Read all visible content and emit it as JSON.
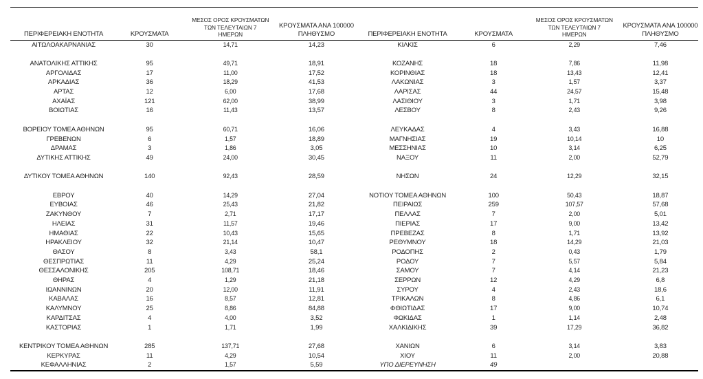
{
  "page": {
    "background": "#ffffff",
    "text_color": "#1f1f1f",
    "border_color": "#000000"
  },
  "table": {
    "headers": {
      "region": "ΠΕΡΙΦΕΡΕΙΑΚΗ ΕΝΟΤΗΤΑ",
      "cases": "ΚΡΟΥΣΜΑΤΑ",
      "avg7_line1": "ΜΕΣΟΣ ΟΡΟΣ ΚΡΟΥΣΜΑΤΩΝ",
      "avg7_line2": "ΤΩΝ ΤΕΛΕΥΤΑΙΩΝ 7",
      "avg7_line3": "ΗΜΕΡΩΝ",
      "per100k_line1": "ΚΡΟΥΣΜΑΤΑ ΑΝΑ 100000",
      "per100k_line2": "ΠΛΗΘΥΣΜΟ"
    },
    "left_rows": [
      {
        "region": "ΑΙΤΩΛΟΑΚΑΡΝΑΝΙΑΣ",
        "cases": "30",
        "avg7": "14,71",
        "per100k": "14,23"
      },
      {
        "region": "",
        "cases": "",
        "avg7": "",
        "per100k": ""
      },
      {
        "region": "ΑΝΑΤΟΛΙΚΗΣ ΑΤΤΙΚΗΣ",
        "cases": "95",
        "avg7": "49,71",
        "per100k": "18,91"
      },
      {
        "region": "ΑΡΓΟΛΙΔΑΣ",
        "cases": "17",
        "avg7": "11,00",
        "per100k": "17,52"
      },
      {
        "region": "ΑΡΚΑΔΙΑΣ",
        "cases": "36",
        "avg7": "18,29",
        "per100k": "41,53"
      },
      {
        "region": "ΑΡΤΑΣ",
        "cases": "12",
        "avg7": "6,00",
        "per100k": "17,68"
      },
      {
        "region": "ΑΧΑΪΑΣ",
        "cases": "121",
        "avg7": "62,00",
        "per100k": "38,99"
      },
      {
        "region": "ΒΟΙΩΤΙΑΣ",
        "cases": "16",
        "avg7": "11,43",
        "per100k": "13,57"
      },
      {
        "region": "",
        "cases": "",
        "avg7": "",
        "per100k": ""
      },
      {
        "region": "ΒΟΡΕΙΟΥ ΤΟΜΕΑ ΑΘΗΝΩΝ",
        "cases": "95",
        "avg7": "60,71",
        "per100k": "16,06"
      },
      {
        "region": "ΓΡΕΒΕΝΩΝ",
        "cases": "6",
        "avg7": "1,57",
        "per100k": "18,89"
      },
      {
        "region": "ΔΡΑΜΑΣ",
        "cases": "3",
        "avg7": "1,86",
        "per100k": "3,05"
      },
      {
        "region": "ΔΥΤΙΚΗΣ ΑΤΤΙΚΗΣ",
        "cases": "49",
        "avg7": "24,00",
        "per100k": "30,45"
      },
      {
        "region": "",
        "cases": "",
        "avg7": "",
        "per100k": ""
      },
      {
        "region": "ΔΥΤΙΚΟΥ ΤΟΜΕΑ ΑΘΗΝΩΝ",
        "cases": "140",
        "avg7": "92,43",
        "per100k": "28,59"
      },
      {
        "region": "",
        "cases": "",
        "avg7": "",
        "per100k": ""
      },
      {
        "region": "ΕΒΡΟΥ",
        "cases": "40",
        "avg7": "14,29",
        "per100k": "27,04"
      },
      {
        "region": "ΕΥΒΟΙΑΣ",
        "cases": "46",
        "avg7": "25,43",
        "per100k": "21,82"
      },
      {
        "region": "ΖΑΚΥΝΘΟΥ",
        "cases": "7",
        "avg7": "2,71",
        "per100k": "17,17"
      },
      {
        "region": "ΗΛΕΙΑΣ",
        "cases": "31",
        "avg7": "11,57",
        "per100k": "19,46"
      },
      {
        "region": "ΗΜΑΘΙΑΣ",
        "cases": "22",
        "avg7": "10,43",
        "per100k": "15,65"
      },
      {
        "region": "ΗΡΑΚΛΕΙΟΥ",
        "cases": "32",
        "avg7": "21,14",
        "per100k": "10,47"
      },
      {
        "region": "ΘΑΣΟΥ",
        "cases": "8",
        "avg7": "3,43",
        "per100k": "58,1"
      },
      {
        "region": "ΘΕΣΠΡΩΤΙΑΣ",
        "cases": "11",
        "avg7": "4,29",
        "per100k": "25,24"
      },
      {
        "region": "ΘΕΣΣΑΛΟΝΙΚΗΣ",
        "cases": "205",
        "avg7": "108,71",
        "per100k": "18,46"
      },
      {
        "region": "ΘΗΡΑΣ",
        "cases": "4",
        "avg7": "1,29",
        "per100k": "21,18"
      },
      {
        "region": "ΙΩΑΝΝΙΝΩΝ",
        "cases": "20",
        "avg7": "12,00",
        "per100k": "11,91"
      },
      {
        "region": "ΚΑΒΑΛΑΣ",
        "cases": "16",
        "avg7": "8,57",
        "per100k": "12,81"
      },
      {
        "region": "ΚΑΛΥΜΝΟΥ",
        "cases": "25",
        "avg7": "8,86",
        "per100k": "84,88"
      },
      {
        "region": "ΚΑΡΔΙΤΣΑΣ",
        "cases": "4",
        "avg7": "4,00",
        "per100k": "3,52"
      },
      {
        "region": "ΚΑΣΤΟΡΙΑΣ",
        "cases": "1",
        "avg7": "1,71",
        "per100k": "1,99"
      },
      {
        "region": "",
        "cases": "",
        "avg7": "",
        "per100k": ""
      },
      {
        "region": "ΚΕΝΤΡΙΚΟΥ ΤΟΜΕΑ ΑΘΗΝΩΝ",
        "cases": "285",
        "avg7": "137,71",
        "per100k": "27,68"
      },
      {
        "region": "ΚΕΡΚΥΡΑΣ",
        "cases": "11",
        "avg7": "4,29",
        "per100k": "10,54"
      },
      {
        "region": "ΚΕΦΑΛΛΗΝΙΑΣ",
        "cases": "2",
        "avg7": "1,57",
        "per100k": "5,59"
      }
    ],
    "right_rows": [
      {
        "region": "ΚΙΛΚΙΣ",
        "cases": "6",
        "avg7": "2,29",
        "per100k": "7,46"
      },
      {
        "region": "",
        "cases": "",
        "avg7": "",
        "per100k": ""
      },
      {
        "region": "ΚΟΖΑΝΗΣ",
        "cases": "18",
        "avg7": "7,86",
        "per100k": "11,98"
      },
      {
        "region": "ΚΟΡΙΝΘΙΑΣ",
        "cases": "18",
        "avg7": "13,43",
        "per100k": "12,41"
      },
      {
        "region": "ΛΑΚΩΝΙΑΣ",
        "cases": "3",
        "avg7": "1,57",
        "per100k": "3,37"
      },
      {
        "region": "ΛΑΡΙΣΑΣ",
        "cases": "44",
        "avg7": "24,57",
        "per100k": "15,48"
      },
      {
        "region": "ΛΑΣΙΘΙΟΥ",
        "cases": "3",
        "avg7": "1,71",
        "per100k": "3,98"
      },
      {
        "region": "ΛΕΣΒΟΥ",
        "cases": "8",
        "avg7": "2,43",
        "per100k": "9,26"
      },
      {
        "region": "",
        "cases": "",
        "avg7": "",
        "per100k": ""
      },
      {
        "region": "ΛΕΥΚΑΔΑΣ",
        "cases": "4",
        "avg7": "3,43",
        "per100k": "16,88"
      },
      {
        "region": "ΜΑΓΝΗΣΙΑΣ",
        "cases": "19",
        "avg7": "10,14",
        "per100k": "10"
      },
      {
        "region": "ΜΕΣΣΗΝΙΑΣ",
        "cases": "10",
        "avg7": "3,14",
        "per100k": "6,25"
      },
      {
        "region": "ΝΑΞΟΥ",
        "cases": "11",
        "avg7": "2,00",
        "per100k": "52,79"
      },
      {
        "region": "",
        "cases": "",
        "avg7": "",
        "per100k": ""
      },
      {
        "region": "ΝΗΣΩΝ",
        "cases": "24",
        "avg7": "12,29",
        "per100k": "32,15"
      },
      {
        "region": "",
        "cases": "",
        "avg7": "",
        "per100k": ""
      },
      {
        "region": "ΝΟΤΙΟΥ ΤΟΜΕΑ ΑΘΗΝΩΝ",
        "cases": "100",
        "avg7": "50,43",
        "per100k": "18,87"
      },
      {
        "region": "ΠΕΙΡΑΙΩΣ",
        "cases": "259",
        "avg7": "107,57",
        "per100k": "57,68"
      },
      {
        "region": "ΠΕΛΛΑΣ",
        "cases": "7",
        "avg7": "2,00",
        "per100k": "5,01"
      },
      {
        "region": "ΠΙΕΡΙΑΣ",
        "cases": "17",
        "avg7": "9,00",
        "per100k": "13,42"
      },
      {
        "region": "ΠΡΕΒΕΖΑΣ",
        "cases": "8",
        "avg7": "1,71",
        "per100k": "13,92"
      },
      {
        "region": "ΡΕΘΥΜΝΟΥ",
        "cases": "18",
        "avg7": "14,29",
        "per100k": "21,03"
      },
      {
        "region": "ΡΟΔΟΠΗΣ",
        "cases": "2",
        "avg7": "0,43",
        "per100k": "1,79"
      },
      {
        "region": "ΡΟΔΟΥ",
        "cases": "7",
        "avg7": "5,57",
        "per100k": "5,84"
      },
      {
        "region": "ΣΑΜΟΥ",
        "cases": "7",
        "avg7": "4,14",
        "per100k": "21,23"
      },
      {
        "region": "ΣΕΡΡΩΝ",
        "cases": "12",
        "avg7": "4,29",
        "per100k": "6,8"
      },
      {
        "region": "ΣΥΡΟΥ",
        "cases": "4",
        "avg7": "2,43",
        "per100k": "18,6"
      },
      {
        "region": "ΤΡΙΚΑΛΩΝ",
        "cases": "8",
        "avg7": "4,86",
        "per100k": "6,1"
      },
      {
        "region": "ΦΘΙΩΤΙΔΑΣ",
        "cases": "17",
        "avg7": "9,00",
        "per100k": "10,74"
      },
      {
        "region": "ΦΩΚΙΔΑΣ",
        "cases": "1",
        "avg7": "1,14",
        "per100k": "2,48"
      },
      {
        "region": "ΧΑΛΚΙΔΙΚΗΣ",
        "cases": "39",
        "avg7": "17,29",
        "per100k": "36,82"
      },
      {
        "region": "",
        "cases": "",
        "avg7": "",
        "per100k": ""
      },
      {
        "region": "ΧΑΝΙΩΝ",
        "cases": "6",
        "avg7": "3,14",
        "per100k": "3,83"
      },
      {
        "region": "ΧΙΟΥ",
        "cases": "11",
        "avg7": "2,00",
        "per100k": "20,88"
      },
      {
        "region": "ΥΠΟ ΔΙΕΡΕΥΝΗΣΗ",
        "cases": "49",
        "avg7": "",
        "per100k": "",
        "italic": true
      }
    ]
  }
}
